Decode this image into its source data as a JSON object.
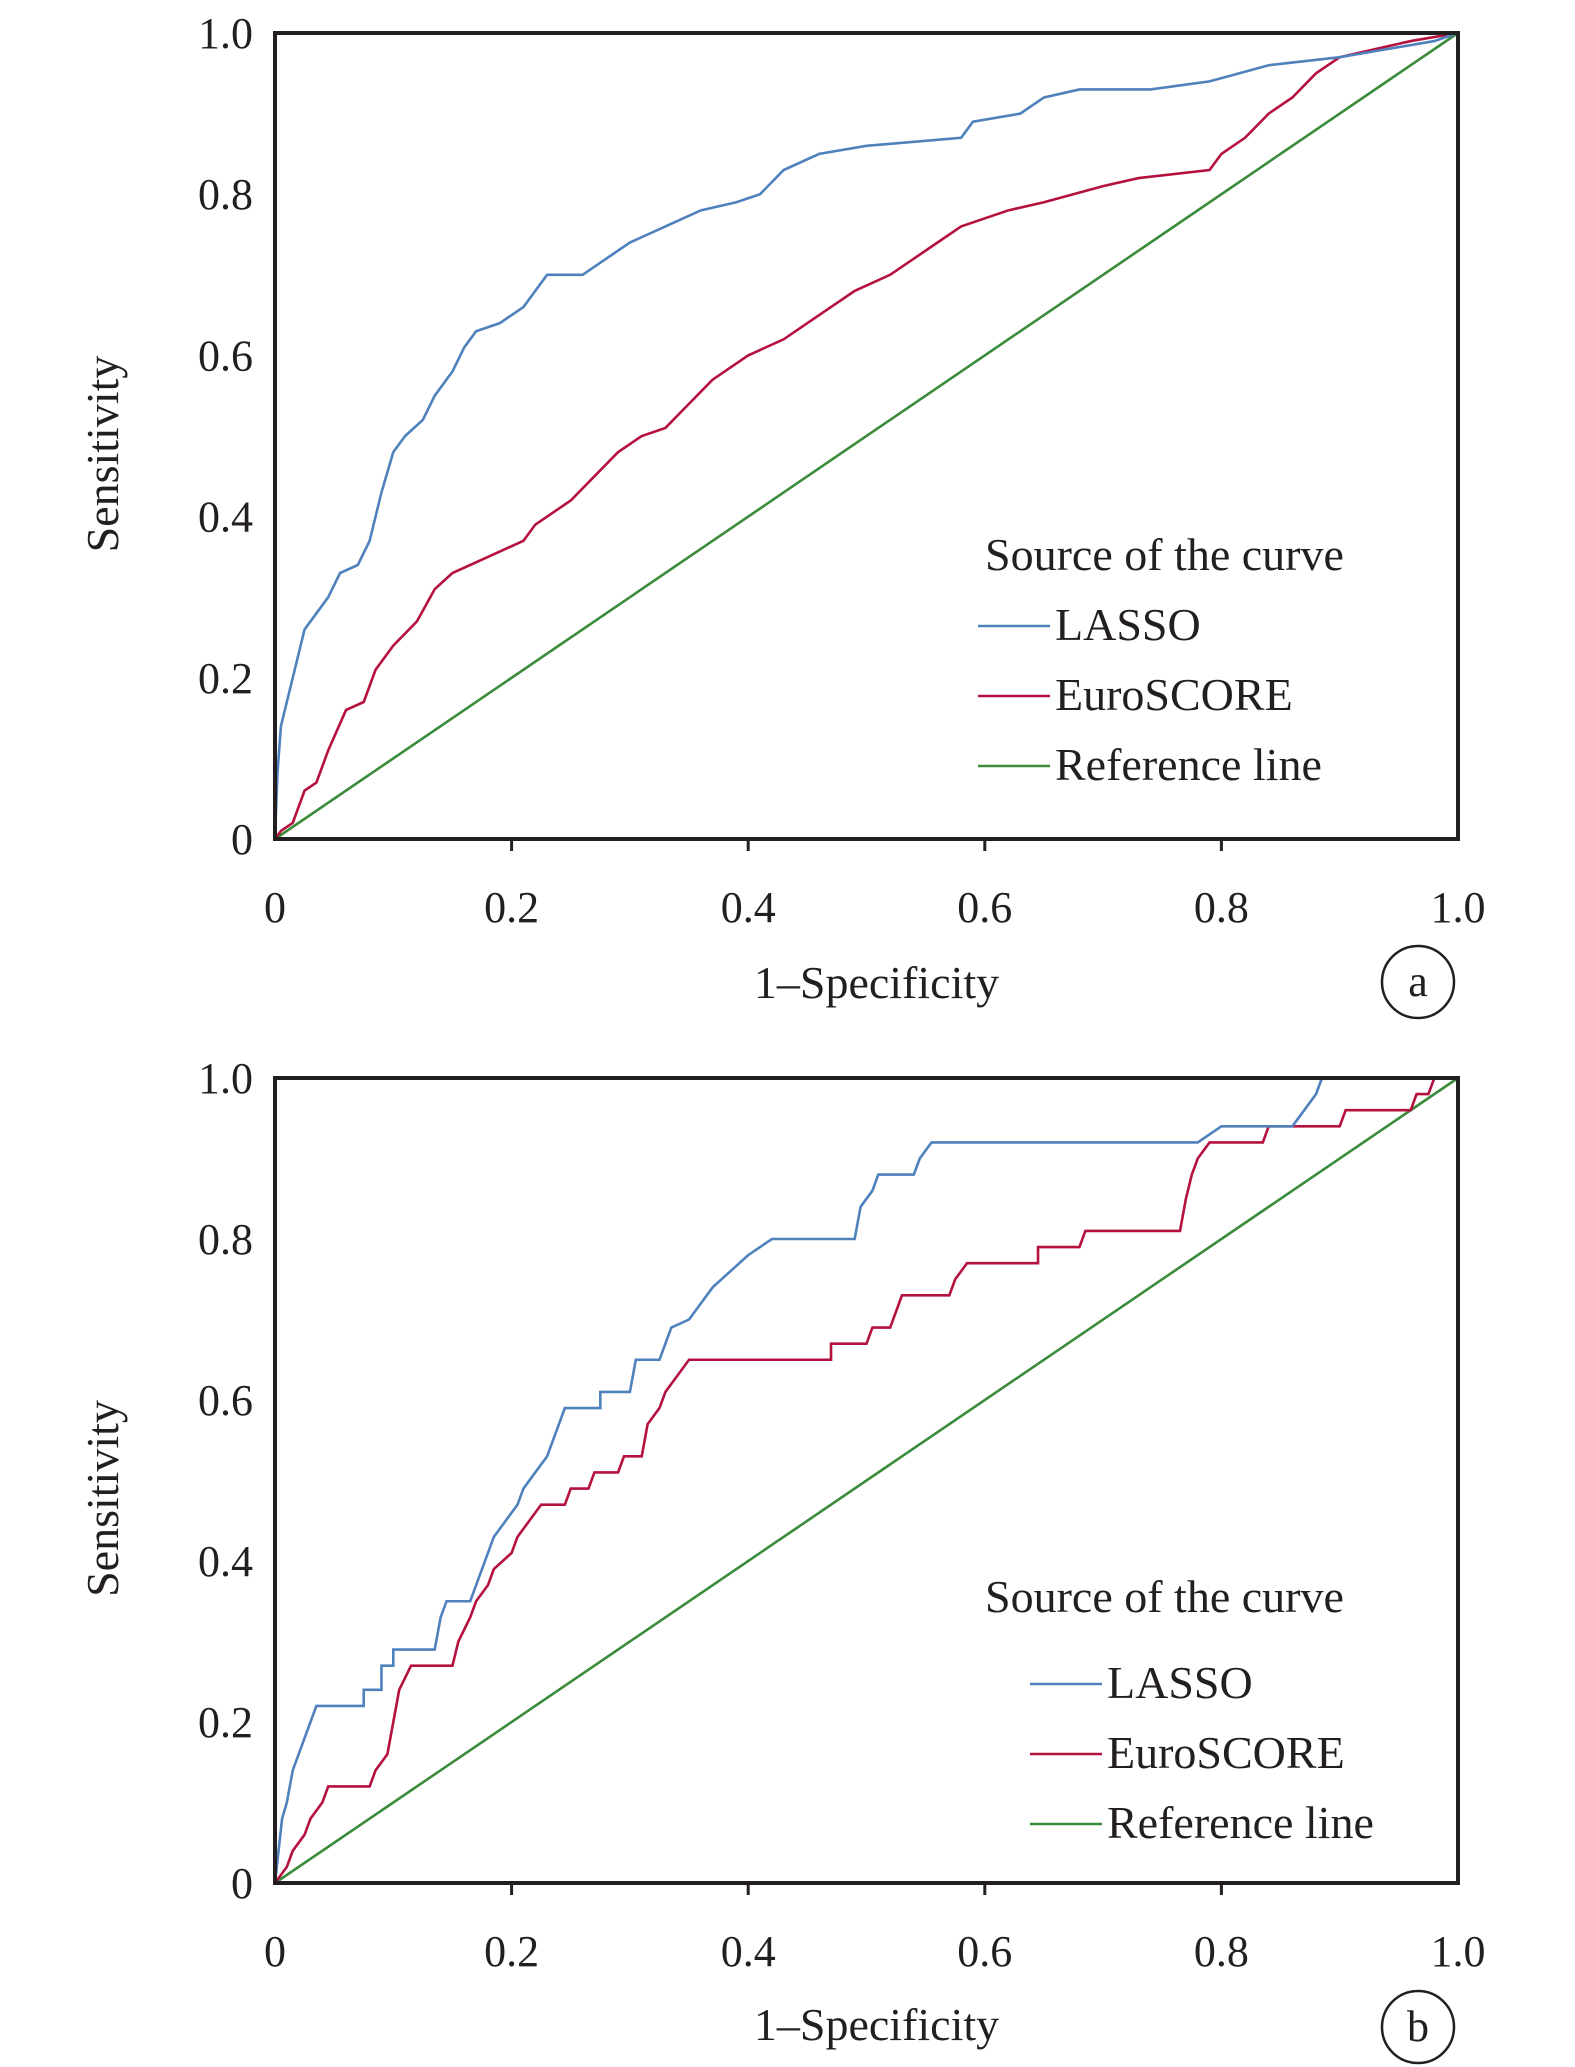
{
  "colors": {
    "lasso": "#4f81bd",
    "euroscore": "#b5113f",
    "reference": "#3a8b3a",
    "axis": "#231f20"
  },
  "chart_data": [
    {
      "type": "line",
      "panel": "a",
      "xlabel": "1–Specificity",
      "ylabel": "Sensitivity",
      "xlim": [
        0,
        1
      ],
      "ylim": [
        0,
        1
      ],
      "x_ticks": [
        "0",
        "0.2",
        "0.4",
        "0.6",
        "0.8",
        "1.0"
      ],
      "y_ticks": [
        "0",
        "0.2",
        "0.4",
        "0.6",
        "0.8",
        "1.0"
      ],
      "legend": {
        "title": "Source of the curve",
        "placement": "lower-right"
      },
      "series": [
        {
          "name": "LASSO",
          "color_key": "lasso",
          "points": [
            [
              0,
              0
            ],
            [
              0.002,
              0.08
            ],
            [
              0.005,
              0.14
            ],
            [
              0.01,
              0.17
            ],
            [
              0.015,
              0.2
            ],
            [
              0.02,
              0.23
            ],
            [
              0.025,
              0.26
            ],
            [
              0.035,
              0.28
            ],
            [
              0.045,
              0.3
            ],
            [
              0.055,
              0.33
            ],
            [
              0.07,
              0.34
            ],
            [
              0.08,
              0.37
            ],
            [
              0.09,
              0.43
            ],
            [
              0.1,
              0.48
            ],
            [
              0.11,
              0.5
            ],
            [
              0.125,
              0.52
            ],
            [
              0.135,
              0.55
            ],
            [
              0.15,
              0.58
            ],
            [
              0.16,
              0.61
            ],
            [
              0.17,
              0.63
            ],
            [
              0.19,
              0.64
            ],
            [
              0.21,
              0.66
            ],
            [
              0.23,
              0.7
            ],
            [
              0.26,
              0.7
            ],
            [
              0.28,
              0.72
            ],
            [
              0.3,
              0.74
            ],
            [
              0.33,
              0.76
            ],
            [
              0.36,
              0.78
            ],
            [
              0.39,
              0.79
            ],
            [
              0.41,
              0.8
            ],
            [
              0.43,
              0.83
            ],
            [
              0.46,
              0.85
            ],
            [
              0.5,
              0.86
            ],
            [
              0.58,
              0.87
            ],
            [
              0.59,
              0.89
            ],
            [
              0.63,
              0.9
            ],
            [
              0.65,
              0.92
            ],
            [
              0.68,
              0.93
            ],
            [
              0.74,
              0.93
            ],
            [
              0.79,
              0.94
            ],
            [
              0.84,
              0.96
            ],
            [
              0.9,
              0.97
            ],
            [
              0.94,
              0.98
            ],
            [
              0.98,
              0.99
            ],
            [
              1.0,
              1.0
            ]
          ]
        },
        {
          "name": "EuroSCORE",
          "color_key": "euroscore",
          "points": [
            [
              0,
              0
            ],
            [
              0.005,
              0.01
            ],
            [
              0.015,
              0.02
            ],
            [
              0.025,
              0.06
            ],
            [
              0.035,
              0.07
            ],
            [
              0.045,
              0.11
            ],
            [
              0.06,
              0.16
            ],
            [
              0.075,
              0.17
            ],
            [
              0.085,
              0.21
            ],
            [
              0.1,
              0.24
            ],
            [
              0.12,
              0.27
            ],
            [
              0.135,
              0.31
            ],
            [
              0.15,
              0.33
            ],
            [
              0.18,
              0.35
            ],
            [
              0.21,
              0.37
            ],
            [
              0.22,
              0.39
            ],
            [
              0.25,
              0.42
            ],
            [
              0.27,
              0.45
            ],
            [
              0.29,
              0.48
            ],
            [
              0.31,
              0.5
            ],
            [
              0.33,
              0.51
            ],
            [
              0.35,
              0.54
            ],
            [
              0.37,
              0.57
            ],
            [
              0.4,
              0.6
            ],
            [
              0.43,
              0.62
            ],
            [
              0.46,
              0.65
            ],
            [
              0.49,
              0.68
            ],
            [
              0.52,
              0.7
            ],
            [
              0.55,
              0.73
            ],
            [
              0.58,
              0.76
            ],
            [
              0.62,
              0.78
            ],
            [
              0.65,
              0.79
            ],
            [
              0.7,
              0.81
            ],
            [
              0.73,
              0.82
            ],
            [
              0.79,
              0.83
            ],
            [
              0.8,
              0.85
            ],
            [
              0.82,
              0.87
            ],
            [
              0.84,
              0.9
            ],
            [
              0.86,
              0.92
            ],
            [
              0.88,
              0.95
            ],
            [
              0.9,
              0.97
            ],
            [
              0.93,
              0.98
            ],
            [
              0.96,
              0.99
            ],
            [
              1.0,
              1.0
            ]
          ]
        },
        {
          "name": "Reference line",
          "color_key": "reference",
          "points": [
            [
              0,
              0
            ],
            [
              1,
              1
            ]
          ]
        }
      ]
    },
    {
      "type": "line",
      "panel": "b",
      "xlabel": "1–Specificity",
      "ylabel": "Sensitivity",
      "xlim": [
        0,
        1
      ],
      "ylim": [
        0,
        1
      ],
      "x_ticks": [
        "0",
        "0.2",
        "0.4",
        "0.6",
        "0.8",
        "1.0"
      ],
      "y_ticks": [
        "0",
        "0.2",
        "0.4",
        "0.6",
        "0.8",
        "1.0"
      ],
      "legend": {
        "title": "Source of the curve",
        "placement": "lower-right"
      },
      "series": [
        {
          "name": "LASSO",
          "color_key": "lasso",
          "points": [
            [
              0,
              0
            ],
            [
              0.003,
              0.04
            ],
            [
              0.006,
              0.08
            ],
            [
              0.01,
              0.1
            ],
            [
              0.015,
              0.14
            ],
            [
              0.02,
              0.16
            ],
            [
              0.025,
              0.18
            ],
            [
              0.03,
              0.2
            ],
            [
              0.035,
              0.22
            ],
            [
              0.075,
              0.22
            ],
            [
              0.075,
              0.24
            ],
            [
              0.09,
              0.24
            ],
            [
              0.09,
              0.27
            ],
            [
              0.1,
              0.27
            ],
            [
              0.1,
              0.29
            ],
            [
              0.135,
              0.29
            ],
            [
              0.14,
              0.33
            ],
            [
              0.145,
              0.35
            ],
            [
              0.165,
              0.35
            ],
            [
              0.17,
              0.37
            ],
            [
              0.175,
              0.39
            ],
            [
              0.185,
              0.43
            ],
            [
              0.195,
              0.45
            ],
            [
              0.205,
              0.47
            ],
            [
              0.21,
              0.49
            ],
            [
              0.22,
              0.51
            ],
            [
              0.23,
              0.53
            ],
            [
              0.24,
              0.57
            ],
            [
              0.245,
              0.59
            ],
            [
              0.275,
              0.59
            ],
            [
              0.275,
              0.61
            ],
            [
              0.3,
              0.61
            ],
            [
              0.305,
              0.65
            ],
            [
              0.325,
              0.65
            ],
            [
              0.33,
              0.67
            ],
            [
              0.335,
              0.69
            ],
            [
              0.35,
              0.7
            ],
            [
              0.36,
              0.72
            ],
            [
              0.37,
              0.74
            ],
            [
              0.385,
              0.76
            ],
            [
              0.4,
              0.78
            ],
            [
              0.42,
              0.8
            ],
            [
              0.49,
              0.8
            ],
            [
              0.495,
              0.84
            ],
            [
              0.505,
              0.86
            ],
            [
              0.51,
              0.88
            ],
            [
              0.54,
              0.88
            ],
            [
              0.545,
              0.9
            ],
            [
              0.555,
              0.92
            ],
            [
              0.78,
              0.92
            ],
            [
              0.8,
              0.94
            ],
            [
              0.86,
              0.94
            ],
            [
              0.87,
              0.96
            ],
            [
              0.88,
              0.98
            ],
            [
              0.885,
              1.0
            ],
            [
              1.0,
              1.0
            ]
          ]
        },
        {
          "name": "EuroSCORE",
          "color_key": "euroscore",
          "points": [
            [
              0,
              0
            ],
            [
              0.01,
              0.02
            ],
            [
              0.015,
              0.04
            ],
            [
              0.025,
              0.06
            ],
            [
              0.03,
              0.08
            ],
            [
              0.04,
              0.1
            ],
            [
              0.045,
              0.12
            ],
            [
              0.08,
              0.12
            ],
            [
              0.085,
              0.14
            ],
            [
              0.095,
              0.16
            ],
            [
              0.1,
              0.2
            ],
            [
              0.105,
              0.24
            ],
            [
              0.115,
              0.27
            ],
            [
              0.15,
              0.27
            ],
            [
              0.155,
              0.3
            ],
            [
              0.165,
              0.33
            ],
            [
              0.17,
              0.35
            ],
            [
              0.18,
              0.37
            ],
            [
              0.185,
              0.39
            ],
            [
              0.2,
              0.41
            ],
            [
              0.205,
              0.43
            ],
            [
              0.215,
              0.45
            ],
            [
              0.225,
              0.47
            ],
            [
              0.245,
              0.47
            ],
            [
              0.25,
              0.49
            ],
            [
              0.265,
              0.49
            ],
            [
              0.27,
              0.51
            ],
            [
              0.29,
              0.51
            ],
            [
              0.295,
              0.53
            ],
            [
              0.31,
              0.53
            ],
            [
              0.315,
              0.57
            ],
            [
              0.325,
              0.59
            ],
            [
              0.33,
              0.61
            ],
            [
              0.34,
              0.63
            ],
            [
              0.35,
              0.65
            ],
            [
              0.47,
              0.65
            ],
            [
              0.47,
              0.67
            ],
            [
              0.5,
              0.67
            ],
            [
              0.505,
              0.69
            ],
            [
              0.52,
              0.69
            ],
            [
              0.525,
              0.71
            ],
            [
              0.53,
              0.73
            ],
            [
              0.57,
              0.73
            ],
            [
              0.575,
              0.75
            ],
            [
              0.585,
              0.77
            ],
            [
              0.645,
              0.77
            ],
            [
              0.645,
              0.79
            ],
            [
              0.68,
              0.79
            ],
            [
              0.685,
              0.81
            ],
            [
              0.765,
              0.81
            ],
            [
              0.77,
              0.85
            ],
            [
              0.775,
              0.88
            ],
            [
              0.78,
              0.9
            ],
            [
              0.79,
              0.92
            ],
            [
              0.835,
              0.92
            ],
            [
              0.84,
              0.94
            ],
            [
              0.9,
              0.94
            ],
            [
              0.905,
              0.96
            ],
            [
              0.96,
              0.96
            ],
            [
              0.965,
              0.98
            ],
            [
              0.975,
              0.98
            ],
            [
              0.98,
              1.0
            ],
            [
              1.0,
              1.0
            ]
          ]
        },
        {
          "name": "Reference line",
          "color_key": "reference",
          "points": [
            [
              0,
              0
            ],
            [
              1,
              1
            ]
          ]
        }
      ]
    }
  ]
}
